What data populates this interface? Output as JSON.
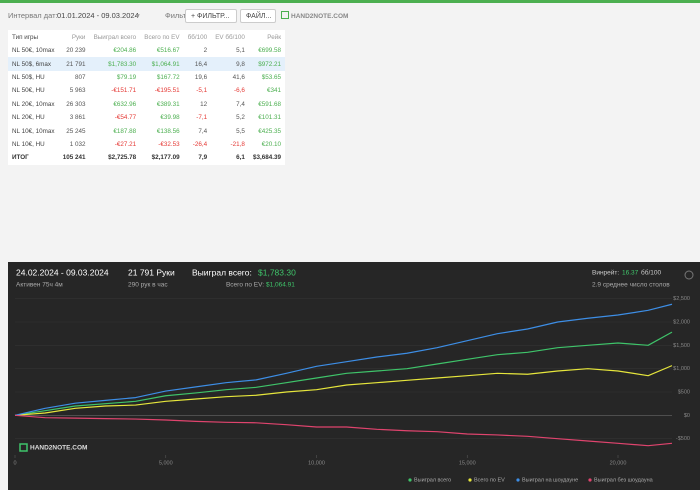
{
  "toolbar": {
    "date_label": "Интервал дат:",
    "date_range": "01.01.2024 - 09.03.2024",
    "filters_label": "Фильтры:",
    "filter_button": "+ ФИЛЬТР...",
    "file_button": "ФАЙЛ...",
    "logo": "HAND2NOTE.COM"
  },
  "table": {
    "headers": [
      "Тип игры",
      "Руки",
      "Выиграл всего",
      "Всего по EV",
      "бб/100",
      "EV бб/100",
      "Рейк"
    ],
    "rows": [
      [
        "NL 50€, 10max",
        "20 239",
        "€204.86",
        "€516.67",
        "2",
        "5,1",
        "€699.58"
      ],
      [
        "NL 50$, 6max",
        "21 791",
        "$1,783.30",
        "$1,064.91",
        "16,4",
        "9,8",
        "$972.21"
      ],
      [
        "NL 50$, HU",
        "807",
        "$79.19",
        "$167.72",
        "19,6",
        "41,6",
        "$53.65"
      ],
      [
        "NL 50€, HU",
        "5 963",
        "-€151.71",
        "-€195.51",
        "-5,1",
        "-6,6",
        "€341"
      ],
      [
        "NL 20€, 10max",
        "26 303",
        "€632.96",
        "€389.31",
        "12",
        "7,4",
        "€591.68"
      ],
      [
        "NL 20€, HU",
        "3 861",
        "-€54.77",
        "€39.98",
        "-7,1",
        "5,2",
        "€101.31"
      ],
      [
        "NL 10€, 10max",
        "25 245",
        "€187.88",
        "€138.56",
        "7,4",
        "5,5",
        "€425.35"
      ],
      [
        "NL 10€, HU",
        "1 032",
        "-€27.21",
        "-€32.53",
        "-26,4",
        "-21,8",
        "€20.10"
      ]
    ],
    "total": [
      "ИТОГ",
      "105 241",
      "$2,725.78",
      "$2,177.09",
      "7,9",
      "6,1",
      "$3,684.39"
    ]
  },
  "panel": {
    "period": "24.02.2024 - 09.03.2024",
    "active": "Активен 75ч 4м",
    "hands": "21 791 Руки",
    "rate": "290 рук в час",
    "won_label": "Выиграл всего:",
    "won_value": "$1,783.30",
    "ev_label": "Всего по EV:",
    "ev_value": "$1,064.91",
    "winrate_label": "Винрейт:",
    "winrate_value": "16.37",
    "winrate_unit": "бб/100",
    "tables": "2.9 среднее число столов",
    "logo": "HAND2NOTE.COM"
  },
  "chart_data": {
    "type": "line",
    "x": [
      0,
      1000,
      2000,
      3000,
      4000,
      5000,
      6000,
      7000,
      8000,
      9000,
      10000,
      11000,
      12000,
      13000,
      14000,
      15000,
      16000,
      17000,
      18000,
      19000,
      20000,
      21000,
      21791
    ],
    "series": [
      {
        "name": "Выиграл всего",
        "color": "#3fc46a",
        "values": [
          0,
          100,
          200,
          250,
          300,
          420,
          480,
          550,
          600,
          700,
          800,
          900,
          950,
          1000,
          1100,
          1200,
          1300,
          1350,
          1450,
          1500,
          1550,
          1500,
          1783
        ]
      },
      {
        "name": "Всего по EV",
        "color": "#e6e63c",
        "values": [
          0,
          50,
          150,
          200,
          220,
          300,
          350,
          400,
          430,
          500,
          550,
          650,
          700,
          750,
          800,
          850,
          900,
          880,
          950,
          1000,
          950,
          850,
          1065
        ]
      },
      {
        "name": "Выиграл на шоудауне",
        "color": "#3d8ee6",
        "values": [
          0,
          150,
          260,
          320,
          380,
          520,
          610,
          700,
          760,
          900,
          1050,
          1150,
          1250,
          1330,
          1450,
          1600,
          1750,
          1850,
          2000,
          2080,
          2150,
          2250,
          2380
        ]
      },
      {
        "name": "Выиграл без шоудауна",
        "color": "#e0446e",
        "values": [
          0,
          -50,
          -60,
          -70,
          -80,
          -100,
          -130,
          -150,
          -160,
          -200,
          -250,
          -250,
          -300,
          -330,
          -350,
          -400,
          -420,
          -450,
          -500,
          -550,
          -600,
          -650,
          -600
        ]
      }
    ],
    "xlim": [
      0,
      21791
    ],
    "ylim": [
      -850,
      2750
    ],
    "xticks": [
      0,
      {
        "value": 5000,
        "label": "5,000"
      },
      {
        "value": 10000,
        "label": "10,000"
      },
      {
        "value": 15000,
        "label": "15,000"
      },
      {
        "value": 20000,
        "label": "20,000"
      }
    ],
    "yticks": [
      {
        "value": -500,
        "label": "-$500"
      },
      {
        "value": 0,
        "label": "$0"
      },
      {
        "value": 500,
        "label": "$500"
      },
      {
        "value": 1000,
        "label": "$1,000"
      },
      {
        "value": 1500,
        "label": "$1,500"
      },
      {
        "value": 2000,
        "label": "$2,000"
      },
      {
        "value": 2500,
        "label": "$2,500"
      }
    ]
  }
}
